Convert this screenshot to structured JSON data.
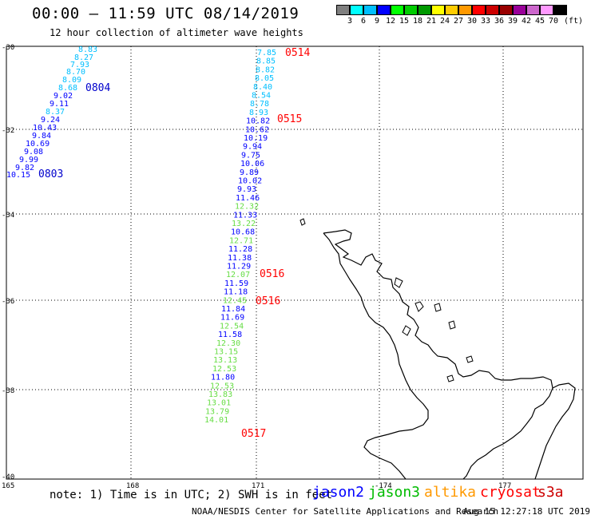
{
  "header": {
    "title": "00:00 – 11:59 UTC 08/14/2019",
    "subtitle": "12 hour collection of altimeter wave heights"
  },
  "colorbar": {
    "colors": [
      "#7f7f7f",
      "#00ffff",
      "#00bfff",
      "#0000ff",
      "#00ff00",
      "#00cc00",
      "#009900",
      "#ffff00",
      "#ffcc00",
      "#ff9900",
      "#ff0000",
      "#cc0000",
      "#990000",
      "#990099",
      "#cc66cc",
      "#ff99ff",
      "#000000"
    ],
    "labels": [
      "3",
      "6",
      "9",
      "12",
      "15",
      "18",
      "21",
      "24",
      "27",
      "30",
      "33",
      "36",
      "39",
      "42",
      "45",
      "70"
    ],
    "unit": "(ft)"
  },
  "axes": {
    "lat_ticks": [
      "-30",
      "-32",
      "-34",
      "-36",
      "-38",
      "-40"
    ],
    "lon_ticks": [
      "165",
      "168",
      "171",
      "-174",
      "177"
    ]
  },
  "tracks": {
    "track_a": {
      "color": "#00bfff",
      "values": [
        "8.83",
        "8.27",
        "7.93",
        "8.70",
        "8.09",
        "8.68"
      ]
    },
    "track_a_mid": {
      "values": [
        {
          "v": "9.02",
          "c": "#0000ff"
        },
        {
          "v": "9.11",
          "c": "#0000ff"
        },
        {
          "v": "8.37",
          "c": "#00bfff"
        },
        {
          "v": "9.24",
          "c": "#0000ff"
        },
        {
          "v": "10.43",
          "c": "#0000ff"
        },
        {
          "v": "9.84",
          "c": "#0000ff"
        },
        {
          "v": "10.69",
          "c": "#0000ff"
        },
        {
          "v": "9.08",
          "c": "#0000ff"
        },
        {
          "v": "9.99",
          "c": "#0000ff"
        },
        {
          "v": "9.82",
          "c": "#0000ff"
        },
        {
          "v": "10.15",
          "c": "#0000ff"
        }
      ]
    },
    "track_b": {
      "values": [
        {
          "v": "7.85",
          "c": "#00bfff"
        },
        {
          "v": "8.85",
          "c": "#00bfff"
        },
        {
          "v": "8.82",
          "c": "#00bfff"
        },
        {
          "v": "8.05",
          "c": "#00bfff"
        },
        {
          "v": "8.40",
          "c": "#00bfff"
        },
        {
          "v": "8.54",
          "c": "#00bfff"
        },
        {
          "v": "8.78",
          "c": "#00bfff"
        },
        {
          "v": "8.93",
          "c": "#00bfff"
        },
        {
          "v": "10.82",
          "c": "#0000ff"
        },
        {
          "v": "10.62",
          "c": "#0000ff"
        },
        {
          "v": "10.19",
          "c": "#0000ff"
        },
        {
          "v": "9.94",
          "c": "#0000ff"
        },
        {
          "v": "9.75",
          "c": "#0000ff"
        },
        {
          "v": "10.06",
          "c": "#0000ff"
        },
        {
          "v": "9.89",
          "c": "#0000ff"
        },
        {
          "v": "10.02",
          "c": "#0000ff"
        },
        {
          "v": "9.93",
          "c": "#0000ff"
        },
        {
          "v": "11.46",
          "c": "#0000ff"
        },
        {
          "v": "12.32",
          "c": "#66dd44"
        },
        {
          "v": "11.33",
          "c": "#0000ff"
        },
        {
          "v": "13.22",
          "c": "#66dd44"
        },
        {
          "v": "10.68",
          "c": "#0000ff"
        },
        {
          "v": "12.71",
          "c": "#66dd44"
        },
        {
          "v": "11.28",
          "c": "#0000ff"
        },
        {
          "v": "11.38",
          "c": "#0000ff"
        },
        {
          "v": "11.29",
          "c": "#0000ff"
        },
        {
          "v": "12.07",
          "c": "#66dd44"
        },
        {
          "v": "11.59",
          "c": "#0000ff"
        },
        {
          "v": "11.18",
          "c": "#0000ff"
        },
        {
          "v": "12.45",
          "c": "#66dd44"
        },
        {
          "v": "11.84",
          "c": "#0000ff"
        },
        {
          "v": "11.69",
          "c": "#0000ff"
        },
        {
          "v": "12.54",
          "c": "#66dd44"
        },
        {
          "v": "11.58",
          "c": "#0000ff"
        },
        {
          "v": "12.30",
          "c": "#66dd44"
        },
        {
          "v": "13.15",
          "c": "#66dd44"
        },
        {
          "v": "13.13",
          "c": "#66dd44"
        },
        {
          "v": "12.53",
          "c": "#66dd44"
        },
        {
          "v": "11.80",
          "c": "#0000ff"
        },
        {
          "v": "12.53",
          "c": "#66dd44"
        },
        {
          "v": "13.83",
          "c": "#66dd44"
        },
        {
          "v": "13.01",
          "c": "#66dd44"
        },
        {
          "v": "13.79",
          "c": "#66dd44"
        },
        {
          "v": "14.01",
          "c": "#66dd44"
        }
      ]
    },
    "time_labels": [
      {
        "t": "0804",
        "c": "#0000cc"
      },
      {
        "t": "0803",
        "c": "#0000cc"
      },
      {
        "t": "0514",
        "c": "#ff0000"
      },
      {
        "t": "0515",
        "c": "#ff0000"
      },
      {
        "t": "0516",
        "c": "#ff0000"
      },
      {
        "t": "0516",
        "c": "#ff0000"
      },
      {
        "t": "0517",
        "c": "#ff0000"
      }
    ]
  },
  "footer": {
    "note": "note: 1) Time is in UTC; 2) SWH is in feet",
    "legend": [
      {
        "name": "jason2",
        "color": "#0000ff"
      },
      {
        "name": "jason3",
        "color": "#00bb00"
      },
      {
        "name": "altika",
        "color": "#ff9900"
      },
      {
        "name": "cryosat",
        "color": "#ff0000"
      },
      {
        "name": "s3a",
        "color": "#cc0000"
      }
    ],
    "credit": "NOAA/NESDIS Center for Satellite Applications and Research",
    "timestamp": "Aug 15 12:27:18 UTC 2019"
  }
}
